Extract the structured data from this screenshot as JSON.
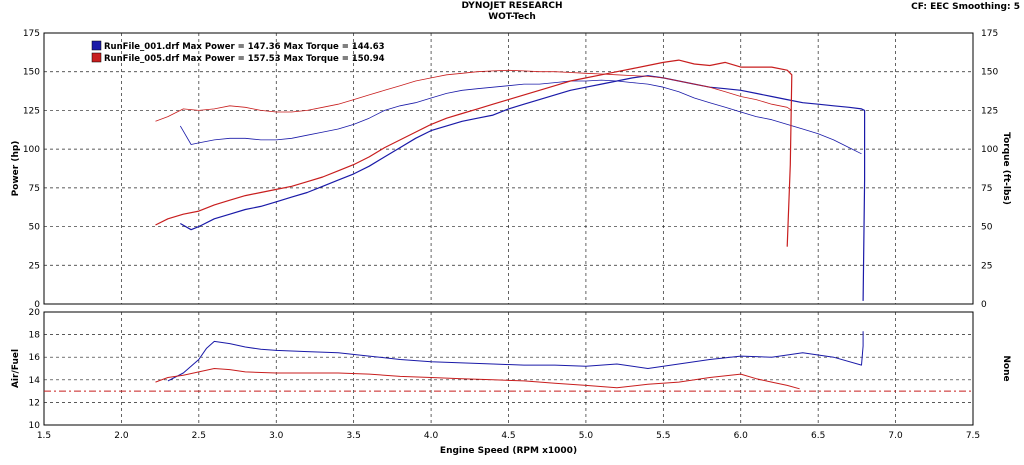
{
  "header": {
    "title": "DYNOJET RESEARCH",
    "subtitle": "WOT-Tech",
    "cf_label": "CF: EEC  Smoothing: 5"
  },
  "colors": {
    "run1": "#1a1aa8",
    "run2": "#c81e1e",
    "grid": "#222222",
    "background": "#ffffff"
  },
  "chart_data": [
    {
      "type": "line",
      "panel": "power-torque",
      "xlabel": "Engine Speed (RPM x1000)",
      "ylabel": "Power (hp)",
      "ylabel_right": "Torque (ft-lbs)",
      "xlim": [
        1.5,
        7.5
      ],
      "ylim": [
        0,
        175
      ],
      "xticks": [
        1.5,
        2.0,
        2.5,
        3.0,
        3.5,
        4.0,
        4.5,
        5.0,
        5.5,
        6.0,
        6.5,
        7.0,
        7.5
      ],
      "yticks": [
        0,
        25,
        50,
        75,
        100,
        125,
        150,
        175
      ],
      "grid": true,
      "legend_placement": "top-left",
      "legend": [
        "RunFile_001.drf Max Power = 147.36 Max Torque = 144.63",
        "RunFile_005.drf Max Power = 157.53 Max Torque = 150.94"
      ],
      "series": [
        {
          "name": "RunFile_001.drf Power",
          "color": "run1",
          "width": 1.2,
          "x": [
            2.38,
            2.45,
            2.5,
            2.6,
            2.7,
            2.8,
            2.9,
            3.0,
            3.1,
            3.2,
            3.3,
            3.4,
            3.5,
            3.6,
            3.7,
            3.8,
            3.9,
            4.0,
            4.1,
            4.2,
            4.3,
            4.4,
            4.5,
            4.6,
            4.7,
            4.8,
            4.9,
            5.0,
            5.1,
            5.2,
            5.3,
            5.4,
            5.5,
            5.6,
            5.7,
            5.8,
            5.9,
            6.0,
            6.1,
            6.2,
            6.3,
            6.4,
            6.5,
            6.6,
            6.7,
            6.78,
            6.8,
            6.8,
            6.79
          ],
          "y": [
            52,
            48,
            50,
            55,
            58,
            61,
            63,
            66,
            69,
            72,
            76,
            80,
            84,
            89,
            95,
            101,
            107,
            112,
            115,
            118,
            120,
            122,
            126,
            129,
            132,
            135,
            138,
            140,
            142,
            144,
            146,
            147.4,
            146,
            144,
            142,
            140,
            139,
            138,
            136,
            134,
            132,
            130,
            129,
            128,
            127,
            126,
            125,
            80,
            2
          ]
        },
        {
          "name": "RunFile_001.drf Torque",
          "color": "run1",
          "width": 0.8,
          "x": [
            2.38,
            2.45,
            2.5,
            2.6,
            2.7,
            2.8,
            2.9,
            3.0,
            3.1,
            3.2,
            3.3,
            3.4,
            3.5,
            3.6,
            3.7,
            3.8,
            3.9,
            4.0,
            4.1,
            4.2,
            4.3,
            4.4,
            4.5,
            4.6,
            4.7,
            4.8,
            4.9,
            5.0,
            5.1,
            5.2,
            5.3,
            5.4,
            5.5,
            5.6,
            5.7,
            5.8,
            5.9,
            6.0,
            6.1,
            6.2,
            6.3,
            6.4,
            6.5,
            6.6,
            6.7,
            6.78
          ],
          "y": [
            115,
            103,
            104,
            106,
            107,
            107,
            106,
            106,
            107,
            109,
            111,
            113,
            116,
            120,
            125,
            128,
            130,
            133,
            136,
            138,
            139,
            140,
            141,
            142,
            142,
            143,
            144,
            144,
            144.6,
            144,
            143,
            142,
            140,
            137,
            133,
            130,
            127,
            124,
            121,
            119,
            116,
            113,
            110,
            106,
            101,
            97
          ]
        },
        {
          "name": "RunFile_005.drf Power",
          "color": "run2",
          "width": 1.2,
          "x": [
            2.22,
            2.3,
            2.4,
            2.5,
            2.6,
            2.7,
            2.8,
            2.9,
            3.0,
            3.1,
            3.2,
            3.3,
            3.4,
            3.5,
            3.6,
            3.7,
            3.8,
            3.9,
            4.0,
            4.1,
            4.2,
            4.3,
            4.4,
            4.5,
            4.6,
            4.7,
            4.8,
            4.9,
            5.0,
            5.1,
            5.2,
            5.3,
            5.4,
            5.5,
            5.6,
            5.7,
            5.8,
            5.9,
            6.0,
            6.1,
            6.2,
            6.3,
            6.33,
            6.32,
            6.3
          ],
          "y": [
            51,
            55,
            58,
            60,
            64,
            67,
            70,
            72,
            74,
            76,
            79,
            82,
            86,
            90,
            95,
            101,
            106,
            111,
            116,
            120,
            123,
            126,
            129,
            132,
            135,
            138,
            141,
            144,
            146,
            148,
            150,
            152,
            154,
            156,
            157.5,
            155,
            154,
            156,
            153,
            153,
            153,
            151,
            148,
            90,
            37
          ]
        },
        {
          "name": "RunFile_005.drf Torque",
          "color": "run2",
          "width": 0.8,
          "x": [
            2.22,
            2.3,
            2.4,
            2.5,
            2.6,
            2.7,
            2.8,
            2.9,
            3.0,
            3.1,
            3.2,
            3.3,
            3.4,
            3.5,
            3.6,
            3.7,
            3.8,
            3.9,
            4.0,
            4.1,
            4.2,
            4.3,
            4.4,
            4.5,
            4.6,
            4.7,
            4.8,
            4.9,
            5.0,
            5.1,
            5.2,
            5.3,
            5.4,
            5.5,
            5.6,
            5.7,
            5.8,
            5.9,
            6.0,
            6.1,
            6.2,
            6.3,
            6.33
          ],
          "y": [
            118,
            121,
            126,
            125,
            126,
            128,
            127,
            125,
            124,
            124,
            125,
            127,
            129,
            132,
            135,
            138,
            141,
            144,
            146,
            148,
            149,
            150,
            150.5,
            150.9,
            150.5,
            150,
            150,
            149.5,
            149,
            148.5,
            148,
            147.5,
            147,
            146,
            144,
            142,
            140,
            137,
            134,
            132,
            129,
            127,
            125
          ]
        }
      ]
    },
    {
      "type": "line",
      "panel": "air-fuel",
      "xlabel": "Engine Speed (RPM x1000)",
      "ylabel": "Air/Fuel",
      "ylabel_right": "None",
      "xlim": [
        1.5,
        7.5
      ],
      "ylim": [
        10,
        20
      ],
      "xticks": [
        1.5,
        2.0,
        2.5,
        3.0,
        3.5,
        4.0,
        4.5,
        5.0,
        5.5,
        6.0,
        6.5,
        7.0,
        7.5
      ],
      "yticks": [
        10,
        12,
        14,
        16,
        18,
        20
      ],
      "grid": true,
      "reference_line": 13.0,
      "series": [
        {
          "name": "RunFile_001.drf Air/Fuel",
          "color": "run1",
          "width": 1.0,
          "x": [
            2.3,
            2.4,
            2.5,
            2.55,
            2.6,
            2.7,
            2.8,
            2.9,
            3.0,
            3.2,
            3.4,
            3.6,
            3.8,
            4.0,
            4.2,
            4.4,
            4.6,
            4.8,
            5.0,
            5.2,
            5.4,
            5.6,
            5.8,
            6.0,
            6.2,
            6.4,
            6.6,
            6.78,
            6.79,
            6.79
          ],
          "y": [
            13.9,
            14.6,
            15.8,
            16.8,
            17.4,
            17.2,
            16.9,
            16.7,
            16.6,
            16.5,
            16.4,
            16.1,
            15.8,
            15.6,
            15.5,
            15.4,
            15.3,
            15.3,
            15.2,
            15.4,
            15.0,
            15.4,
            15.8,
            16.1,
            16.0,
            16.4,
            16.0,
            15.3,
            17.0,
            18.3
          ]
        },
        {
          "name": "RunFile_005.drf Air/Fuel",
          "color": "run2",
          "width": 1.0,
          "x": [
            2.22,
            2.3,
            2.4,
            2.5,
            2.6,
            2.7,
            2.8,
            3.0,
            3.2,
            3.4,
            3.6,
            3.8,
            4.0,
            4.2,
            4.4,
            4.6,
            4.8,
            5.0,
            5.2,
            5.4,
            5.6,
            5.8,
            6.0,
            6.1,
            6.2,
            6.3,
            6.38
          ],
          "y": [
            13.8,
            14.2,
            14.4,
            14.7,
            15.0,
            14.9,
            14.7,
            14.6,
            14.6,
            14.6,
            14.5,
            14.3,
            14.2,
            14.1,
            14.0,
            13.9,
            13.7,
            13.5,
            13.3,
            13.6,
            13.8,
            14.2,
            14.5,
            14.1,
            13.8,
            13.5,
            13.2
          ]
        }
      ]
    }
  ]
}
